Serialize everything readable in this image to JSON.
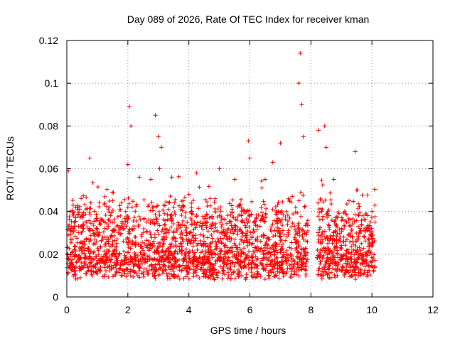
{
  "chart_data": {
    "type": "scatter",
    "title": "Day 089 of 2026, Rate Of TEC Index for receiver kman",
    "xlabel": "GPS time / hours",
    "ylabel": "ROTI / TECUs",
    "xlim": [
      0,
      12
    ],
    "ylim": [
      0,
      0.12
    ],
    "x_ticks": [
      0,
      2,
      4,
      6,
      8,
      10,
      12
    ],
    "x_tick_labels": [
      "0",
      "2",
      "4",
      "6",
      "8",
      "10",
      "12"
    ],
    "y_ticks": [
      0,
      0.02,
      0.04,
      0.06,
      0.08,
      0.1,
      0.12
    ],
    "y_tick_labels": [
      "0",
      "0.02",
      "0.04",
      "0.06",
      "0.08",
      "0.1",
      "0.12"
    ],
    "grid": true,
    "marker": "+",
    "series_color": "#ff0000",
    "data_gaps_hours": [
      [
        7.9,
        8.2
      ]
    ],
    "series": [
      {
        "name": "ROTI",
        "x": [
          0.0,
          0.05,
          0.1,
          0.25,
          0.5,
          0.75,
          1.0,
          1.25,
          1.5,
          1.75,
          2.0,
          2.05,
          2.1,
          2.25,
          2.5,
          2.75,
          2.9,
          3.0,
          3.1,
          3.25,
          3.5,
          3.75,
          4.0,
          4.25,
          4.5,
          4.75,
          5.0,
          5.25,
          5.5,
          5.75,
          5.95,
          6.0,
          6.25,
          6.5,
          6.75,
          7.0,
          7.25,
          7.5,
          7.6,
          7.65,
          7.7,
          7.75,
          7.85,
          8.25,
          8.45,
          8.5,
          8.75,
          9.0,
          9.25,
          9.45,
          9.5,
          9.75,
          10.0,
          10.1
        ],
        "y": [
          0.02,
          0.059,
          0.04,
          0.035,
          0.025,
          0.065,
          0.03,
          0.028,
          0.045,
          0.032,
          0.062,
          0.089,
          0.08,
          0.028,
          0.03,
          0.055,
          0.085,
          0.075,
          0.07,
          0.03,
          0.028,
          0.025,
          0.048,
          0.058,
          0.025,
          0.02,
          0.06,
          0.03,
          0.055,
          0.035,
          0.073,
          0.065,
          0.028,
          0.055,
          0.063,
          0.072,
          0.03,
          0.042,
          0.1,
          0.114,
          0.09,
          0.075,
          0.03,
          0.078,
          0.08,
          0.07,
          0.055,
          0.032,
          0.045,
          0.068,
          0.05,
          0.028,
          0.04,
          0.035
        ]
      }
    ]
  }
}
